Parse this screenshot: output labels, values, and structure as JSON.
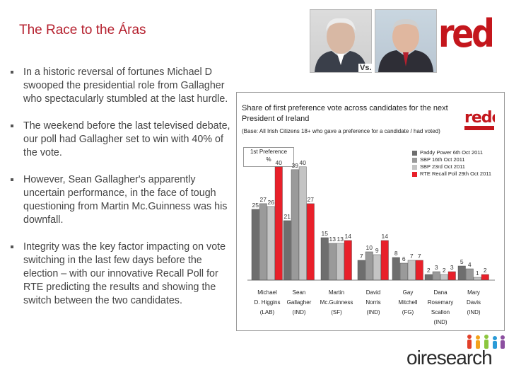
{
  "slide": {
    "title": "The Race to the Áras",
    "bullets": [
      "In a historic reversal of fortunes Michael D swooped the presidential role from Gallagher who spectacularly stumbled at the last hurdle.",
      "The weekend before the last televised debate, our poll had Gallagher set to win with 40% of the vote.",
      "However, Sean Gallagher's apparently uncertain performance, in the face of tough questioning from Martin Mc.Guinness was his downfall.",
      "Integrity was the key factor impacting on vote switching in the last few days before the election – with our innovative Recall Poll for RTE predicting the results and showing the switch between the two candidates."
    ],
    "vs_label": "Vs.",
    "logo_text": "redc",
    "footer_logo_text": "oiresearch"
  },
  "panel": {
    "title": "Share of first preference vote across candidates for the next President of Ireland",
    "base": "(Base: All Irish Citizens 18+ who gave a preference for a candidate / had voted)",
    "pref_box_line1": "1st Preference",
    "pref_box_line2": "%",
    "small_logo_text": "redc"
  },
  "chart_data": {
    "type": "bar",
    "categories": [
      [
        "Michael",
        "D. Higgins",
        "(LAB)"
      ],
      [
        "Sean",
        "Gallagher",
        "(IND)"
      ],
      [
        "Martin",
        "Mc.Guinness",
        "(SF)"
      ],
      [
        "David",
        "Norris",
        "(IND)"
      ],
      [
        "Gay",
        "Mitchell",
        "(FG)"
      ],
      [
        "Dana",
        "Rosemary",
        "Scallon",
        "(IND)"
      ],
      [
        "Mary",
        "Davis",
        "(IND)"
      ]
    ],
    "series": [
      {
        "name": "Paddy Power 6th Oct 2011",
        "color": "#6e6e6e",
        "values": [
          25,
          21,
          15,
          7,
          8,
          2,
          5
        ]
      },
      {
        "name": "SBP 16th Oct 2011",
        "color": "#9a9a9a",
        "values": [
          27,
          39,
          13,
          10,
          6,
          3,
          4
        ]
      },
      {
        "name": "SBP 23rd Oct 2011",
        "color": "#c4c4c4",
        "values": [
          26,
          40,
          13,
          9,
          7,
          2,
          1
        ]
      },
      {
        "name": "RTE Recall Poll 29th Oct 2011",
        "color": "#e8202a",
        "values": [
          40,
          27,
          14,
          14,
          7,
          3,
          2
        ]
      }
    ],
    "data_labels": [
      [
        "25",
        "27",
        "26",
        "40"
      ],
      [
        "21",
        "39",
        "40",
        "27"
      ],
      [
        "15",
        "13",
        "13",
        "14"
      ],
      [
        "7",
        "10",
        "9",
        "14"
      ],
      [
        "8",
        "6",
        "7",
        "7"
      ],
      [
        "2",
        "3",
        "2",
        "3"
      ],
      [
        "5",
        "4",
        "1",
        "2"
      ]
    ],
    "ylim": [
      0,
      45
    ],
    "legend": "top-right"
  }
}
